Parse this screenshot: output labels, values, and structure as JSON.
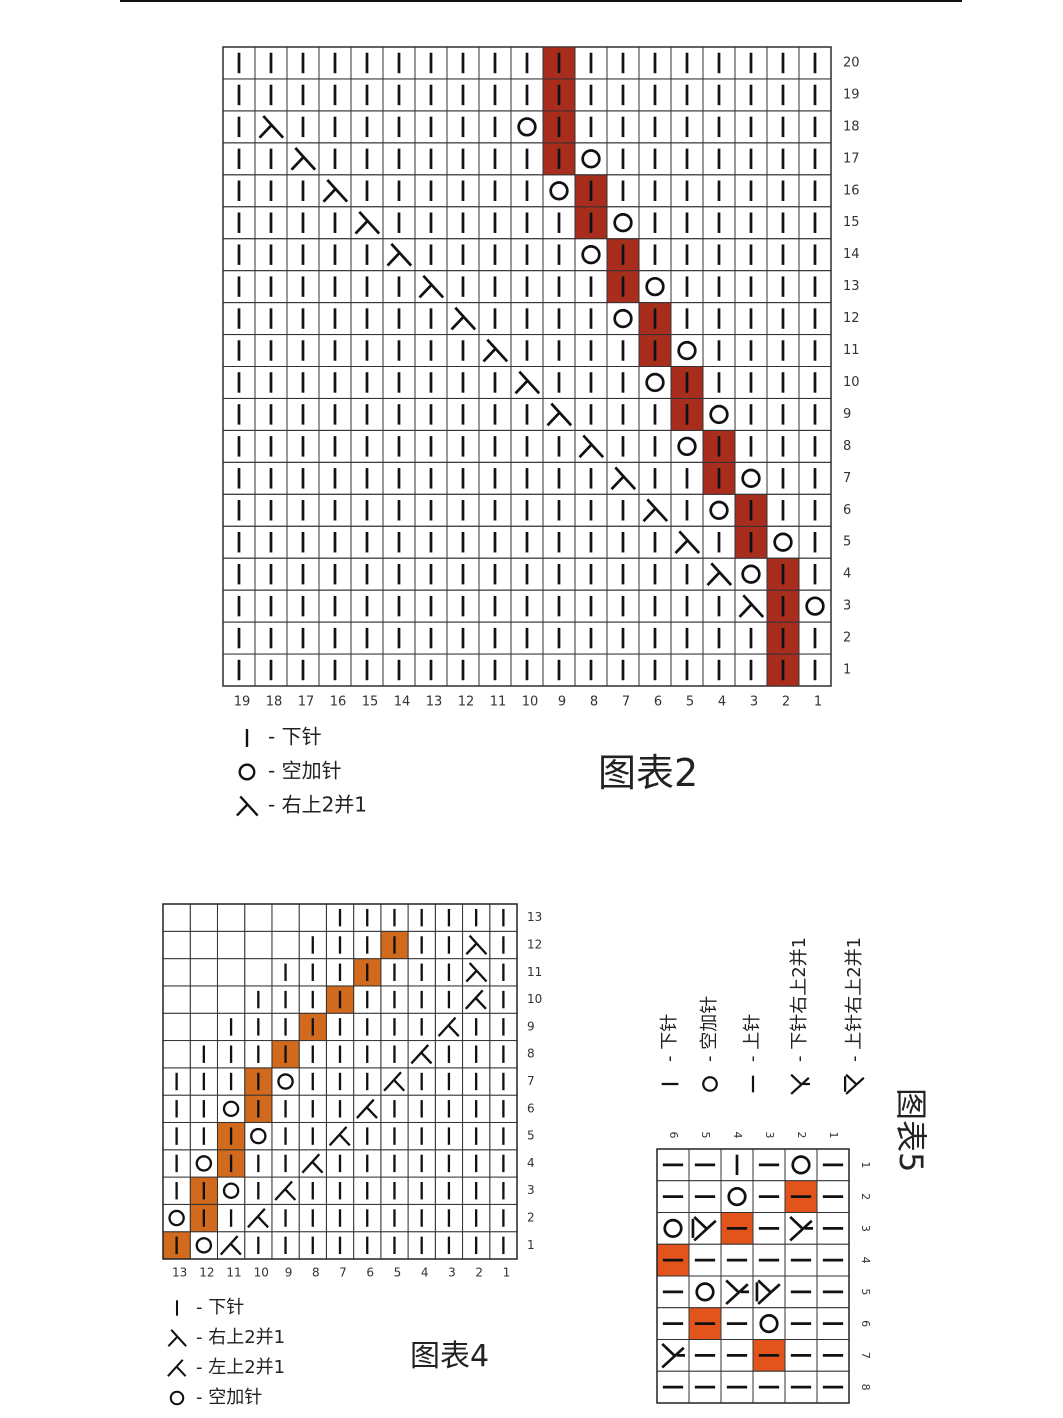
{
  "chart2": {
    "title": "图表2",
    "cols": 19,
    "rows": 20,
    "row_labels": [
      "1",
      "2",
      "3",
      "4",
      "5",
      "6",
      "7",
      "8",
      "9",
      "10",
      "11",
      "12",
      "13",
      "14",
      "15",
      "16",
      "17",
      "18",
      "19",
      "20"
    ],
    "col_labels": [
      "19",
      "18",
      "17",
      "16",
      "15",
      "14",
      "13",
      "12",
      "11",
      "10",
      "9",
      "8",
      "7",
      "6",
      "5",
      "4",
      "3",
      "2",
      "1"
    ],
    "fill_color": "#a92d1d",
    "default_symbol": "knit",
    "filled": [
      [
        1,
        2
      ],
      [
        2,
        2
      ],
      [
        3,
        2
      ],
      [
        4,
        2
      ],
      [
        5,
        3
      ],
      [
        6,
        3
      ],
      [
        7,
        4
      ],
      [
        8,
        4
      ],
      [
        9,
        5
      ],
      [
        10,
        5
      ],
      [
        11,
        6
      ],
      [
        12,
        6
      ],
      [
        13,
        7
      ],
      [
        14,
        7
      ],
      [
        15,
        8
      ],
      [
        16,
        8
      ],
      [
        17,
        9
      ],
      [
        18,
        9
      ],
      [
        19,
        9
      ],
      [
        20,
        9
      ]
    ],
    "symbols": [
      {
        "row": 3,
        "col": 1,
        "sym": "yo"
      },
      {
        "row": 3,
        "col": 3,
        "sym": "ssk"
      },
      {
        "row": 4,
        "col": 3,
        "sym": "yo"
      },
      {
        "row": 4,
        "col": 4,
        "sym": "ssk"
      },
      {
        "row": 5,
        "col": 2,
        "sym": "yo"
      },
      {
        "row": 5,
        "col": 5,
        "sym": "ssk"
      },
      {
        "row": 6,
        "col": 4,
        "sym": "yo"
      },
      {
        "row": 6,
        "col": 6,
        "sym": "ssk"
      },
      {
        "row": 7,
        "col": 3,
        "sym": "yo"
      },
      {
        "row": 7,
        "col": 7,
        "sym": "ssk"
      },
      {
        "row": 8,
        "col": 5,
        "sym": "yo"
      },
      {
        "row": 8,
        "col": 8,
        "sym": "ssk"
      },
      {
        "row": 9,
        "col": 4,
        "sym": "yo"
      },
      {
        "row": 9,
        "col": 9,
        "sym": "ssk"
      },
      {
        "row": 10,
        "col": 6,
        "sym": "yo"
      },
      {
        "row": 10,
        "col": 10,
        "sym": "ssk"
      },
      {
        "row": 11,
        "col": 5,
        "sym": "yo"
      },
      {
        "row": 11,
        "col": 11,
        "sym": "ssk"
      },
      {
        "row": 12,
        "col": 7,
        "sym": "yo"
      },
      {
        "row": 12,
        "col": 12,
        "sym": "ssk"
      },
      {
        "row": 13,
        "col": 6,
        "sym": "yo"
      },
      {
        "row": 13,
        "col": 13,
        "sym": "ssk"
      },
      {
        "row": 14,
        "col": 8,
        "sym": "yo"
      },
      {
        "row": 14,
        "col": 14,
        "sym": "ssk"
      },
      {
        "row": 15,
        "col": 7,
        "sym": "yo"
      },
      {
        "row": 15,
        "col": 15,
        "sym": "ssk"
      },
      {
        "row": 16,
        "col": 9,
        "sym": "yo"
      },
      {
        "row": 16,
        "col": 16,
        "sym": "ssk"
      },
      {
        "row": 17,
        "col": 8,
        "sym": "yo"
      },
      {
        "row": 17,
        "col": 17,
        "sym": "ssk"
      },
      {
        "row": 18,
        "col": 10,
        "sym": "yo"
      },
      {
        "row": 18,
        "col": 18,
        "sym": "ssk"
      }
    ],
    "legend": [
      {
        "sym": "knit",
        "text": "- 下针"
      },
      {
        "sym": "yo",
        "text": "- 空加针"
      },
      {
        "sym": "ssk",
        "text": "- 右上2并1"
      }
    ]
  },
  "chart4": {
    "title": "图表4",
    "cols": 13,
    "rows": 13,
    "row_labels": [
      "1",
      "2",
      "3",
      "4",
      "5",
      "6",
      "7",
      "8",
      "9",
      "10",
      "11",
      "12",
      "13"
    ],
    "col_labels": [
      "13",
      "12",
      "11",
      "10",
      "9",
      "8",
      "7",
      "6",
      "5",
      "4",
      "3",
      "2",
      "1"
    ],
    "fill_color": "#d16a1c",
    "active_from": [
      13,
      13,
      13,
      13,
      13,
      13,
      13,
      12,
      11,
      10,
      9,
      8,
      7
    ],
    "filled": [
      [
        1,
        13
      ],
      [
        2,
        12
      ],
      [
        3,
        12
      ],
      [
        4,
        11
      ],
      [
        5,
        11
      ],
      [
        6,
        10
      ],
      [
        7,
        10
      ],
      [
        8,
        9
      ],
      [
        9,
        8
      ],
      [
        10,
        7
      ],
      [
        11,
        6
      ],
      [
        12,
        5
      ]
    ],
    "symbols": [
      {
        "row": 1,
        "col": 12,
        "sym": "yo"
      },
      {
        "row": 1,
        "col": 11,
        "sym": "k2tog"
      },
      {
        "row": 2,
        "col": 13,
        "sym": "yo"
      },
      {
        "row": 2,
        "col": 10,
        "sym": "k2tog"
      },
      {
        "row": 3,
        "col": 11,
        "sym": "yo"
      },
      {
        "row": 3,
        "col": 9,
        "sym": "k2tog"
      },
      {
        "row": 4,
        "col": 12,
        "sym": "yo"
      },
      {
        "row": 4,
        "col": 8,
        "sym": "k2tog"
      },
      {
        "row": 5,
        "col": 10,
        "sym": "yo"
      },
      {
        "row": 5,
        "col": 7,
        "sym": "k2tog"
      },
      {
        "row": 6,
        "col": 11,
        "sym": "yo"
      },
      {
        "row": 6,
        "col": 6,
        "sym": "k2tog"
      },
      {
        "row": 7,
        "col": 9,
        "sym": "yo"
      },
      {
        "row": 7,
        "col": 5,
        "sym": "k2tog"
      },
      {
        "row": 8,
        "col": 4,
        "sym": "k2tog"
      },
      {
        "row": 9,
        "col": 3,
        "sym": "k2tog"
      },
      {
        "row": 10,
        "col": 2,
        "sym": "k2tog"
      },
      {
        "row": 11,
        "col": 2,
        "sym": "ssk"
      },
      {
        "row": 12,
        "col": 2,
        "sym": "ssk"
      }
    ],
    "legend": [
      {
        "sym": "knit",
        "text": "- 下针"
      },
      {
        "sym": "ssk",
        "text": "- 右上2并1"
      },
      {
        "sym": "k2tog",
        "text": "- 左上2并1"
      },
      {
        "sym": "yo",
        "text": "- 空加针"
      }
    ]
  },
  "chart5": {
    "title": "图表5",
    "note": "rotated 90° clockwise in the picture; grid rows = stitches 1-6, grid columns = rows 1-8",
    "row_labels": [
      "1",
      "2",
      "3",
      "4",
      "5",
      "6",
      "7",
      "8"
    ],
    "col_labels": [
      "6",
      "5",
      "4",
      "3",
      "2",
      "1"
    ],
    "fill_color": "#e2541c",
    "grid": [
      [
        "knit",
        "knit",
        "purl",
        "knit",
        "yo",
        "knit"
      ],
      [
        "knit",
        "knit",
        "yo",
        "knit",
        "fill",
        "knit"
      ],
      [
        "yo",
        "pssk",
        "fill",
        "knit",
        "kssk",
        "knit"
      ],
      [
        "fill",
        "knit",
        "knit",
        "knit",
        "knit",
        "knit"
      ],
      [
        "knit",
        "yo",
        "kssk",
        "pssk",
        "knit",
        "knit"
      ],
      [
        "knit",
        "fill",
        "knit",
        "yo",
        "knit",
        "knit"
      ],
      [
        "kssk",
        "knit",
        "knit",
        "fill",
        "knit",
        "knit"
      ],
      [
        "knit",
        "knit",
        "knit",
        "knit",
        "knit",
        "knit"
      ]
    ],
    "legend": [
      {
        "sym": "knit",
        "text": "- 下针"
      },
      {
        "sym": "yo",
        "text": "- 空加针"
      },
      {
        "sym": "purl",
        "text": "- 上针"
      },
      {
        "sym": "kssk",
        "text": "- 下针右上2并1"
      },
      {
        "sym": "pssk",
        "text": "- 上针右上2并1"
      }
    ]
  }
}
